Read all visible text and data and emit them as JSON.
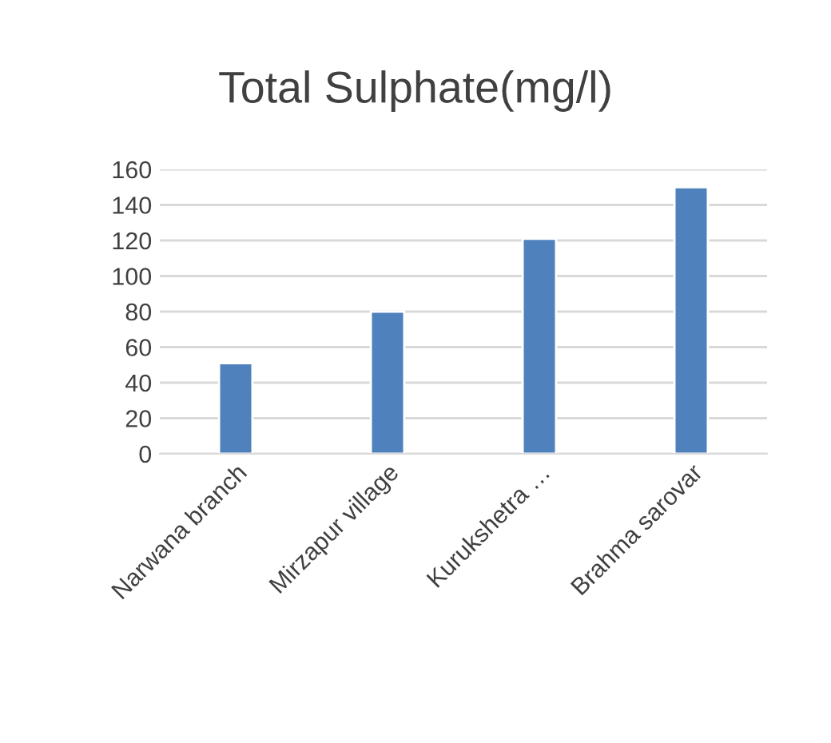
{
  "chart_data": {
    "type": "bar",
    "title": "Total Sulphate(mg/l)",
    "categories": [
      "Narwana branch",
      "Mirzapur village",
      "Kurukshetra …",
      "Brahma sarovar"
    ],
    "values": [
      51,
      80,
      121,
      150
    ],
    "color": "#4f81bd",
    "ylim": [
      0,
      160
    ],
    "yticks": [
      0,
      20,
      40,
      60,
      80,
      100,
      120,
      140,
      160
    ],
    "grid": "y",
    "legend": false
  }
}
